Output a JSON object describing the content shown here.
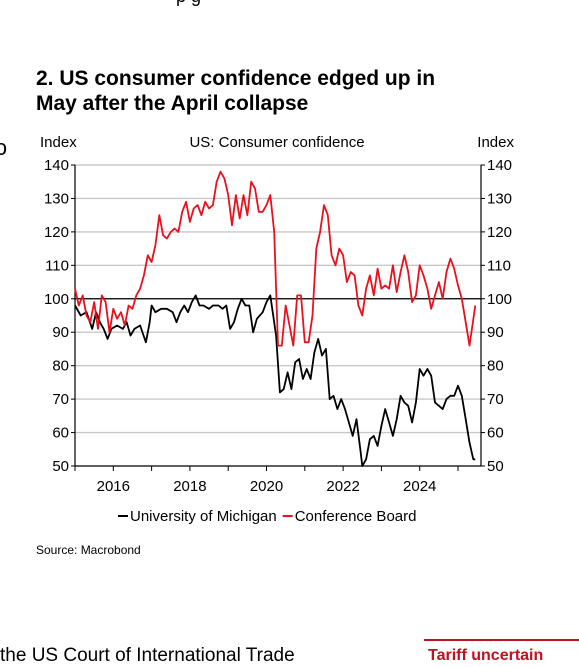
{
  "page": {
    "cut_top_text": "p          g",
    "left_cut_glyph": "ɔ",
    "heading_lines": [
      "2. US consumer confidence edged up in",
      "May after the April collapse"
    ],
    "source": "Source: Macrobond",
    "bottom_text": "the US Court of International Trade",
    "right_callout": "Tariff uncertain",
    "accent_red": "#e8111c",
    "accent_dark_red": "#c0111f"
  },
  "chart_data": {
    "type": "line",
    "title": "US: Consumer confidence",
    "ylabel_left": "Index",
    "ylabel_right": "Index",
    "ylim": [
      50,
      140
    ],
    "yticks": [
      50,
      60,
      70,
      80,
      90,
      100,
      110,
      120,
      130,
      140
    ],
    "xlim": [
      2015.0,
      2025.6
    ],
    "xticks": [
      2016,
      2018,
      2020,
      2022,
      2024
    ],
    "xtick_labels": [
      "2016",
      "2018",
      "2020",
      "2022",
      "2024"
    ],
    "reference_line": 100,
    "grid": true,
    "legend_position": "bottom",
    "series": [
      {
        "name": "University of Michigan",
        "color": "#000000",
        "points": [
          [
            2015.0,
            98
          ],
          [
            2015.15,
            95
          ],
          [
            2015.3,
            96
          ],
          [
            2015.45,
            91
          ],
          [
            2015.55,
            96
          ],
          [
            2015.65,
            93
          ],
          [
            2015.75,
            91
          ],
          [
            2015.85,
            88
          ],
          [
            2015.95,
            91
          ],
          [
            2016.1,
            92
          ],
          [
            2016.25,
            91
          ],
          [
            2016.35,
            93
          ],
          [
            2016.45,
            89
          ],
          [
            2016.55,
            91
          ],
          [
            2016.7,
            92
          ],
          [
            2016.85,
            87
          ],
          [
            2016.95,
            93
          ],
          [
            2017.0,
            98
          ],
          [
            2017.1,
            96
          ],
          [
            2017.25,
            97
          ],
          [
            2017.4,
            97
          ],
          [
            2017.55,
            96
          ],
          [
            2017.65,
            93
          ],
          [
            2017.75,
            96
          ],
          [
            2017.85,
            98
          ],
          [
            2017.95,
            96
          ],
          [
            2018.05,
            99
          ],
          [
            2018.15,
            101
          ],
          [
            2018.25,
            98
          ],
          [
            2018.35,
            98
          ],
          [
            2018.5,
            97
          ],
          [
            2018.6,
            98
          ],
          [
            2018.75,
            98
          ],
          [
            2018.85,
            97
          ],
          [
            2018.95,
            98
          ],
          [
            2019.05,
            91
          ],
          [
            2019.15,
            93
          ],
          [
            2019.25,
            97
          ],
          [
            2019.35,
            100
          ],
          [
            2019.45,
            98
          ],
          [
            2019.55,
            98
          ],
          [
            2019.65,
            90
          ],
          [
            2019.75,
            94
          ],
          [
            2019.9,
            96
          ],
          [
            2020.0,
            99
          ],
          [
            2020.1,
            101
          ],
          [
            2020.25,
            89
          ],
          [
            2020.35,
            72
          ],
          [
            2020.45,
            73
          ],
          [
            2020.55,
            78
          ],
          [
            2020.65,
            73
          ],
          [
            2020.75,
            81
          ],
          [
            2020.85,
            82
          ],
          [
            2020.95,
            76
          ],
          [
            2021.05,
            79
          ],
          [
            2021.15,
            76
          ],
          [
            2021.25,
            84
          ],
          [
            2021.35,
            88
          ],
          [
            2021.45,
            83
          ],
          [
            2021.55,
            85
          ],
          [
            2021.65,
            70
          ],
          [
            2021.75,
            71
          ],
          [
            2021.85,
            67
          ],
          [
            2021.95,
            70
          ],
          [
            2022.05,
            67
          ],
          [
            2022.15,
            63
          ],
          [
            2022.25,
            59
          ],
          [
            2022.35,
            64
          ],
          [
            2022.45,
            55
          ],
          [
            2022.5,
            50
          ],
          [
            2022.6,
            52
          ],
          [
            2022.7,
            58
          ],
          [
            2022.8,
            59
          ],
          [
            2022.9,
            56
          ],
          [
            2023.0,
            62
          ],
          [
            2023.1,
            67
          ],
          [
            2023.2,
            63
          ],
          [
            2023.3,
            59
          ],
          [
            2023.4,
            64
          ],
          [
            2023.5,
            71
          ],
          [
            2023.6,
            69
          ],
          [
            2023.7,
            68
          ],
          [
            2023.8,
            63
          ],
          [
            2023.9,
            69
          ],
          [
            2024.0,
            79
          ],
          [
            2024.1,
            77
          ],
          [
            2024.2,
            79
          ],
          [
            2024.3,
            77
          ],
          [
            2024.4,
            69
          ],
          [
            2024.5,
            68
          ],
          [
            2024.6,
            67
          ],
          [
            2024.7,
            70
          ],
          [
            2024.8,
            71
          ],
          [
            2024.9,
            71
          ],
          [
            2025.0,
            74
          ],
          [
            2025.1,
            71
          ],
          [
            2025.2,
            64
          ],
          [
            2025.3,
            57
          ],
          [
            2025.4,
            52
          ],
          [
            2025.45,
            52
          ]
        ]
      },
      {
        "name": "Conference Board",
        "color": "#e8111c",
        "points": [
          [
            2015.0,
            103
          ],
          [
            2015.1,
            98
          ],
          [
            2015.2,
            101
          ],
          [
            2015.3,
            95
          ],
          [
            2015.4,
            93
          ],
          [
            2015.5,
            99
          ],
          [
            2015.6,
            91
          ],
          [
            2015.7,
            101
          ],
          [
            2015.8,
            99
          ],
          [
            2015.9,
            90
          ],
          [
            2016.0,
            97
          ],
          [
            2016.1,
            94
          ],
          [
            2016.2,
            96
          ],
          [
            2016.3,
            92
          ],
          [
            2016.4,
            98
          ],
          [
            2016.5,
            97
          ],
          [
            2016.6,
            101
          ],
          [
            2016.7,
            103
          ],
          [
            2016.8,
            107
          ],
          [
            2016.9,
            113
          ],
          [
            2017.0,
            111
          ],
          [
            2017.1,
            116
          ],
          [
            2017.2,
            125
          ],
          [
            2017.3,
            119
          ],
          [
            2017.4,
            118
          ],
          [
            2017.5,
            120
          ],
          [
            2017.6,
            121
          ],
          [
            2017.7,
            120
          ],
          [
            2017.8,
            126
          ],
          [
            2017.9,
            129
          ],
          [
            2018.0,
            123
          ],
          [
            2018.1,
            127
          ],
          [
            2018.2,
            128
          ],
          [
            2018.3,
            125
          ],
          [
            2018.4,
            129
          ],
          [
            2018.5,
            127
          ],
          [
            2018.6,
            128
          ],
          [
            2018.7,
            135
          ],
          [
            2018.8,
            138
          ],
          [
            2018.9,
            136
          ],
          [
            2019.0,
            131
          ],
          [
            2019.1,
            122
          ],
          [
            2019.2,
            131
          ],
          [
            2019.3,
            124
          ],
          [
            2019.4,
            131
          ],
          [
            2019.5,
            125
          ],
          [
            2019.6,
            135
          ],
          [
            2019.7,
            133
          ],
          [
            2019.8,
            126
          ],
          [
            2019.9,
            126
          ],
          [
            2020.0,
            128
          ],
          [
            2020.1,
            131
          ],
          [
            2020.2,
            120
          ],
          [
            2020.3,
            86
          ],
          [
            2020.4,
            86
          ],
          [
            2020.5,
            98
          ],
          [
            2020.6,
            92
          ],
          [
            2020.7,
            86
          ],
          [
            2020.8,
            101
          ],
          [
            2020.9,
            101
          ],
          [
            2021.0,
            87
          ],
          [
            2021.1,
            87
          ],
          [
            2021.2,
            95
          ],
          [
            2021.3,
            115
          ],
          [
            2021.4,
            120
          ],
          [
            2021.5,
            128
          ],
          [
            2021.6,
            125
          ],
          [
            2021.7,
            113
          ],
          [
            2021.8,
            110
          ],
          [
            2021.9,
            115
          ],
          [
            2022.0,
            113
          ],
          [
            2022.1,
            105
          ],
          [
            2022.2,
            108
          ],
          [
            2022.3,
            107
          ],
          [
            2022.4,
            98
          ],
          [
            2022.5,
            95
          ],
          [
            2022.6,
            103
          ],
          [
            2022.7,
            107
          ],
          [
            2022.8,
            101
          ],
          [
            2022.9,
            109
          ],
          [
            2023.0,
            103
          ],
          [
            2023.1,
            104
          ],
          [
            2023.2,
            103
          ],
          [
            2023.3,
            110
          ],
          [
            2023.4,
            102
          ],
          [
            2023.5,
            108
          ],
          [
            2023.6,
            113
          ],
          [
            2023.7,
            108
          ],
          [
            2023.8,
            99
          ],
          [
            2023.9,
            101
          ],
          [
            2024.0,
            110
          ],
          [
            2024.1,
            107
          ],
          [
            2024.2,
            103
          ],
          [
            2024.3,
            97
          ],
          [
            2024.4,
            101
          ],
          [
            2024.5,
            105
          ],
          [
            2024.6,
            100
          ],
          [
            2024.7,
            108
          ],
          [
            2024.8,
            112
          ],
          [
            2024.9,
            109
          ],
          [
            2025.0,
            104
          ],
          [
            2025.1,
            100
          ],
          [
            2025.2,
            93
          ],
          [
            2025.3,
            86
          ],
          [
            2025.45,
            98
          ]
        ]
      }
    ]
  }
}
